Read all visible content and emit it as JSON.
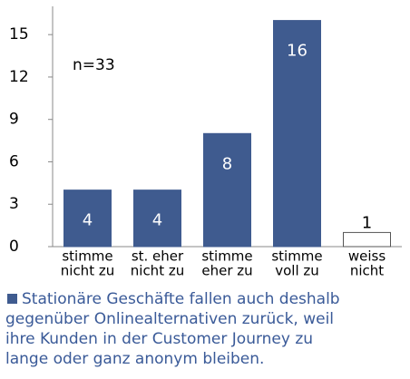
{
  "chart_data": {
    "type": "bar",
    "categories": [
      [
        "stimme",
        "nicht zu"
      ],
      [
        "st. eher",
        "nicht zu"
      ],
      [
        "stimme",
        "eher zu"
      ],
      [
        "stimme",
        "voll zu"
      ],
      [
        "weiss",
        "nicht"
      ]
    ],
    "values": [
      4,
      4,
      8,
      16,
      1
    ],
    "colors": [
      "#3f5b8f",
      "#3f5b8f",
      "#3f5b8f",
      "#3f5b8f",
      "#ffffff"
    ],
    "ylim": [
      0,
      17
    ],
    "yticks": [
      0,
      3,
      6,
      9,
      12,
      15
    ],
    "annotation": "n=33",
    "caption": [
      "Stationäre Geschäfte fallen auch deshalb",
      "gegenüber Onlinealternativen zurück, weil",
      "ihre Kunden in der Customer Journey zu",
      "lange oder ganz anonym bleiben."
    ]
  }
}
